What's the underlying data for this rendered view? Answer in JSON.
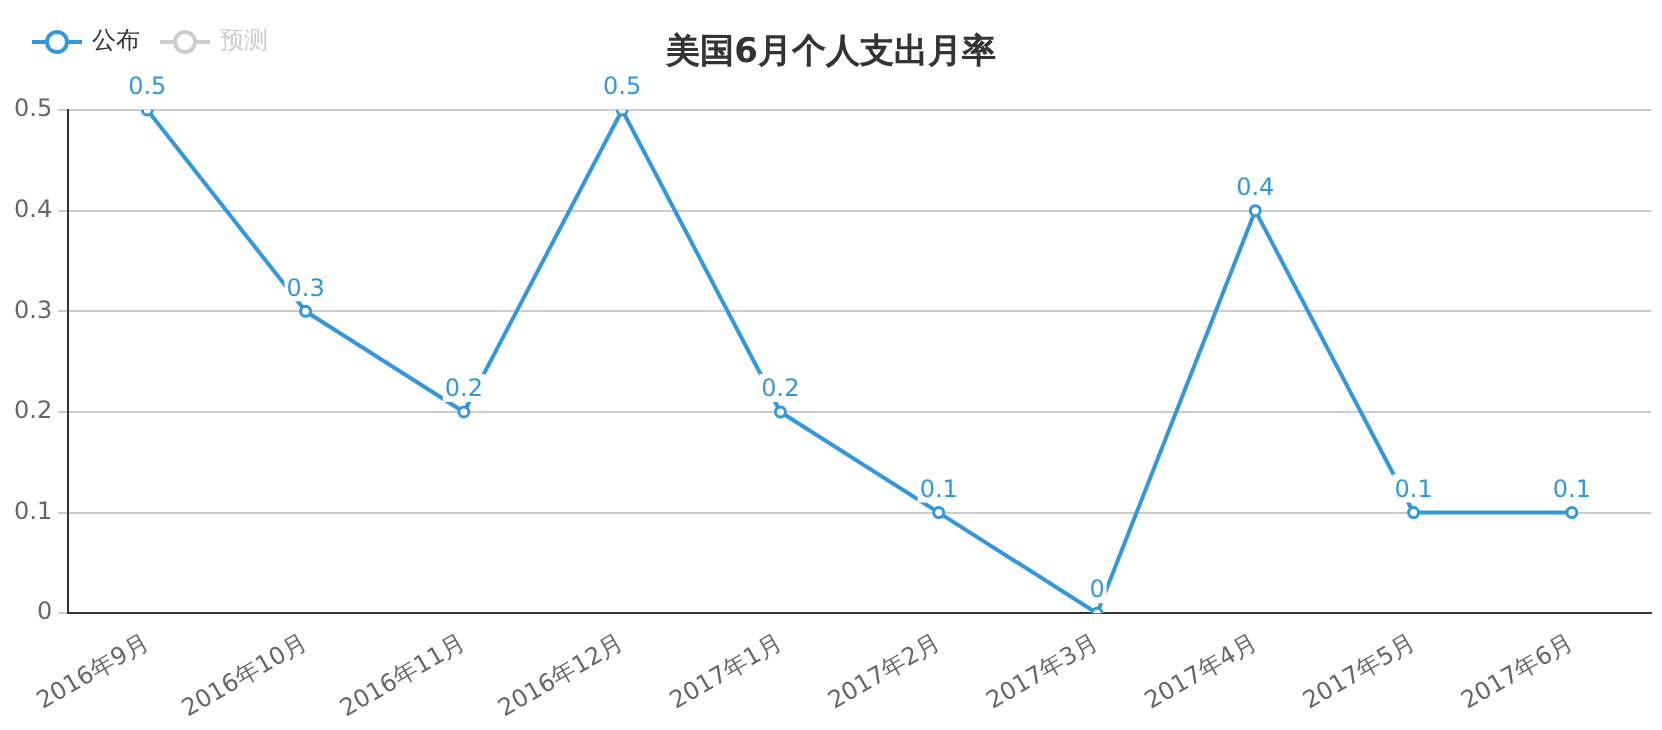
{
  "chart_data": {
    "type": "line",
    "title": "美国6月个人支出月率",
    "categories": [
      "2016年9月",
      "2016年10月",
      "2016年11月",
      "2016年12月",
      "2017年1月",
      "2017年2月",
      "2017年3月",
      "2017年4月",
      "2017年5月",
      "2017年6月"
    ],
    "series": [
      {
        "name": "公布",
        "color": "#3398db",
        "values": [
          0.5,
          0.3,
          0.2,
          0.5,
          0.2,
          0.1,
          0,
          0.4,
          0.1,
          0.1
        ]
      },
      {
        "name": "预测",
        "color": "#cccccc",
        "values": [
          null,
          null,
          null,
          null,
          null,
          null,
          null,
          null,
          null,
          null
        ]
      }
    ],
    "ylim": [
      0,
      0.5
    ],
    "yticks": [
      0,
      0.1,
      0.2,
      0.3,
      0.4,
      0.5
    ],
    "grid": "y",
    "legend": "top left",
    "marker": "circle",
    "line_style": "solid",
    "data_labels": true
  }
}
